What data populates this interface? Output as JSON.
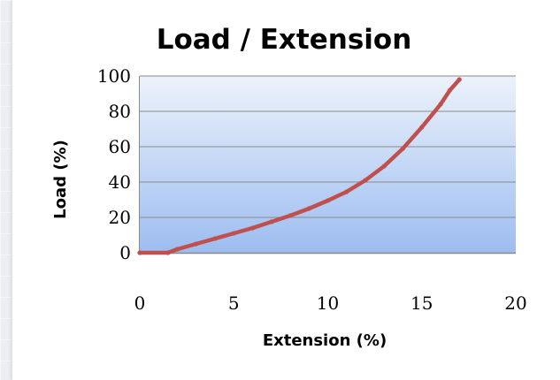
{
  "chart_data": {
    "type": "line",
    "title": "Load / Extension",
    "xlabel": "Extension (%)",
    "ylabel": "Load (%)",
    "xlim": [
      0,
      20
    ],
    "ylim": [
      0,
      100
    ],
    "x_ticks": [
      "0",
      "5",
      "10",
      "15",
      "20"
    ],
    "y_ticks": [
      "0",
      "20",
      "40",
      "60",
      "80",
      "100"
    ],
    "grid": "horizontal",
    "legend": "none",
    "series": [
      {
        "color": "#c0504d",
        "x": [
          0,
          1.5,
          2,
          3,
          4,
          5,
          6,
          7,
          8,
          9,
          10,
          11,
          12,
          13,
          14,
          15,
          16,
          16.5,
          17
        ],
        "y": [
          0,
          0,
          2,
          5,
          8,
          11,
          14,
          17.5,
          21,
          25,
          29.5,
          34.5,
          41,
          49,
          59,
          71,
          84,
          92,
          98
        ]
      }
    ],
    "colors": {
      "plot_gradient_top": "#ecf2fb",
      "plot_gradient_bottom": "#9dbdf0",
      "gridline": "#8a8a8a",
      "axis": "#8a8a8a"
    }
  }
}
